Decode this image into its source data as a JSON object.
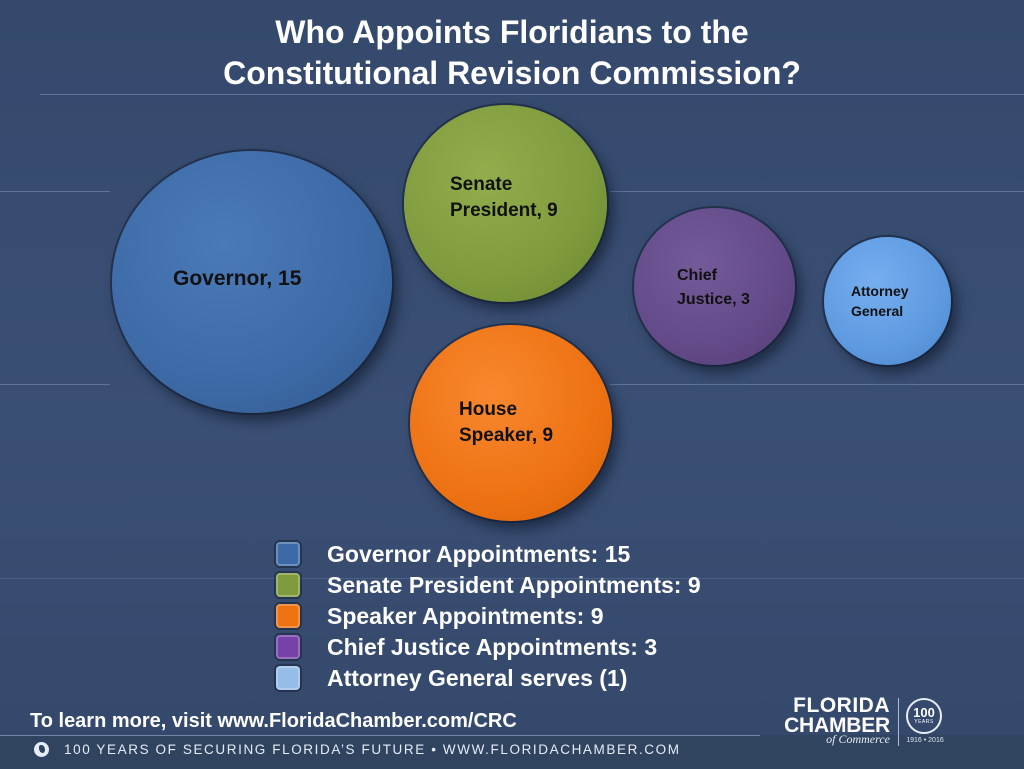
{
  "title": {
    "line1": "Who Appoints Floridians to the",
    "line2": "Constitutional Revision Commission?"
  },
  "bubbles": [
    {
      "id": "governor",
      "label": "Governor, 15",
      "value": 15,
      "color": "#3d6aa6"
    },
    {
      "id": "senate-president",
      "label": "Senate\nPresident, 9",
      "value": 9,
      "color": "#7f9b3d"
    },
    {
      "id": "chief-justice",
      "label": "Chief\nJustice, 3",
      "value": 3,
      "color": "#634a88"
    },
    {
      "id": "attorney-general",
      "label": "Attorney\nGeneral",
      "value": 1,
      "color": "#5e9ae0"
    },
    {
      "id": "house-speaker",
      "label": "House\nSpeaker, 9",
      "value": 9,
      "color": "#ee7212"
    }
  ],
  "legend": [
    {
      "text": "Governor Appointments: 15",
      "color": "#3d6aa6"
    },
    {
      "text": "Senate President Appointments: 9",
      "color": "#7f9b3d"
    },
    {
      "text": "Speaker Appointments: 9",
      "color": "#ee7212"
    },
    {
      "text": "Chief Justice Appointments: 3",
      "color": "#7442a8"
    },
    {
      "text": "Attorney General serves (1)",
      "color": "#96bde8"
    }
  ],
  "cta": "To learn more, visit www.FloridaChamber.com/CRC",
  "footer": {
    "tagline": "100 YEARS OF SECURING FLORIDA’S FUTURE • WWW.FLORIDACHAMBER.COM",
    "icon": "leaf-icon"
  },
  "logo": {
    "line1": "FLORIDA",
    "line2": "CHAMBER",
    "line3": "of Commerce",
    "seal_number": "100",
    "seal_sub": "YEARS",
    "seal_years": "1916 • 2016"
  }
}
